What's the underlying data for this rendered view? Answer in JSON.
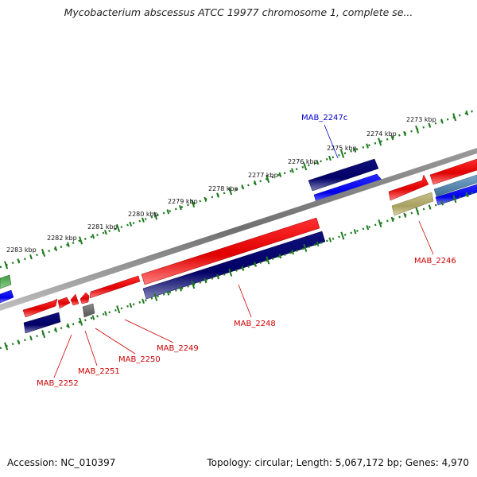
{
  "title": "Mycobacterium abscessus ATCC 19977 chromosome 1, complete se...",
  "footer": {
    "accession": "Accession: NC_010397",
    "summary": "Topology: circular; Length: 5,067,172 bp; Genes: 4,970"
  },
  "ruler": {
    "labels": [
      "2273 kbp",
      "2274 kbp",
      "2275 kbp",
      "2276 kbp",
      "2277 kbp",
      "2278 kbp",
      "2279 kbp",
      "2280 kbp",
      "2281 kbp",
      "2282 kbp",
      "2283 kbp"
    ]
  },
  "gene_labels": {
    "mab_2247c": "MAB_2247c",
    "mab_2246": "MAB_2246",
    "mab_2248": "MAB_2248",
    "mab_2249": "MAB_2249",
    "mab_2250": "MAB_2250",
    "mab_2251": "MAB_2251",
    "mab_2252": "MAB_2252"
  },
  "colors": {
    "background": "#ffffff",
    "backbone": "#808080",
    "ruler": "#1f7a1f",
    "cds_forward": "#e00000",
    "cds_reverse": "#000080",
    "orf_blue": "#0000ee",
    "orf_green": "#2e8b2e",
    "orf_khaki": "#b8b070",
    "orf_steel": "#4f86b0",
    "orf_gray": "#707070",
    "label_red": "#cc0000",
    "label_blue": "#0000cc"
  }
}
